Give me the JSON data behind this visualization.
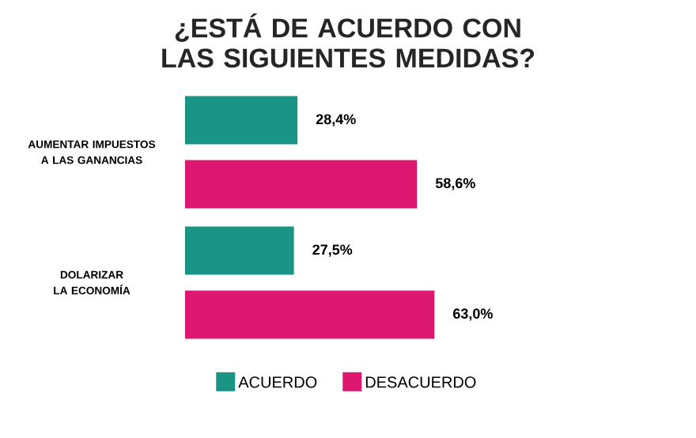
{
  "chart_data": {
    "type": "bar",
    "orientation": "horizontal",
    "title": "¿ESTÁ DE ACUERDO CON LAS SIGUIENTES MEDIDAS?",
    "categories": [
      "AUMENTAR IMPUESTOS A LAS GANANCIAS",
      "DOLARIZAR LA ECONOMÍA"
    ],
    "series": [
      {
        "name": "ACUERDO",
        "color": "#1a9485",
        "values": [
          28.4,
          27.5
        ],
        "value_labels": [
          "28,4%",
          "27,5%"
        ]
      },
      {
        "name": "DESACUERDO",
        "color": "#dc1870",
        "values": [
          58.6,
          63.0
        ],
        "value_labels": [
          "58,6%",
          "63,0%"
        ]
      }
    ],
    "legend": "bottom",
    "tick_labels": "y"
  }
}
